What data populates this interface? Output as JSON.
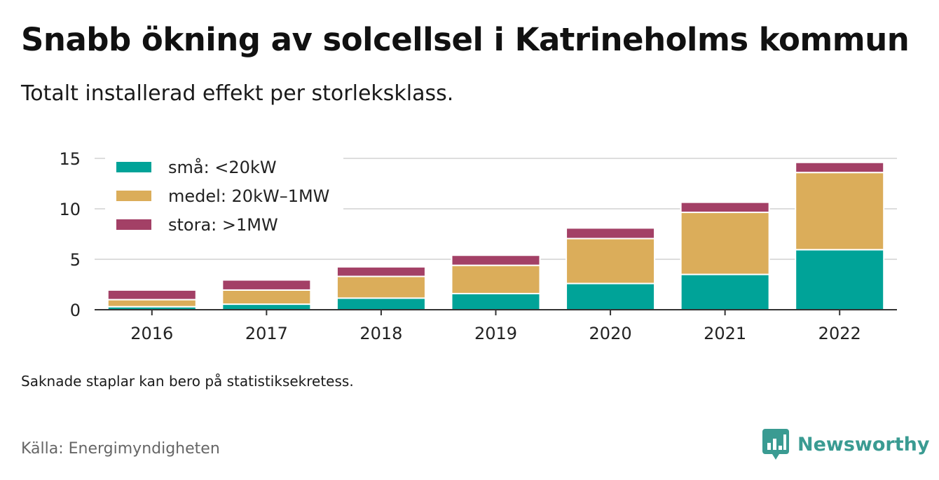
{
  "header": {
    "title": "Snabb ökning av solcellsel i Katrineholms kommun",
    "subtitle": "Totalt installerad effekt per storleksklass."
  },
  "footer": {
    "note": "Saknade staplar kan bero på statistiksekretess.",
    "source": "Källa: Energimyndigheten",
    "brand": "Newsworthy",
    "brand_color": "#3a9b92"
  },
  "chart_data": {
    "type": "bar",
    "stacked": true,
    "categories": [
      "2016",
      "2017",
      "2018",
      "2019",
      "2020",
      "2021",
      "2022"
    ],
    "series": [
      {
        "name": "små: <20kW",
        "color": "#00a398",
        "values": [
          0.3,
          0.55,
          1.15,
          1.6,
          2.6,
          3.5,
          5.95
        ]
      },
      {
        "name": "medel: 20kW–1MW",
        "color": "#dbad5a",
        "values": [
          0.7,
          1.4,
          2.15,
          2.8,
          4.45,
          6.15,
          7.65
        ]
      },
      {
        "name": "stora: >1MW",
        "color": "#a34066",
        "values": [
          0.95,
          1.0,
          0.95,
          1.0,
          1.05,
          1.0,
          1.0
        ]
      }
    ],
    "yticks": [
      0,
      5,
      10,
      15
    ],
    "ylim": [
      0,
      15
    ],
    "grid": true,
    "legend_position": "top-left"
  }
}
